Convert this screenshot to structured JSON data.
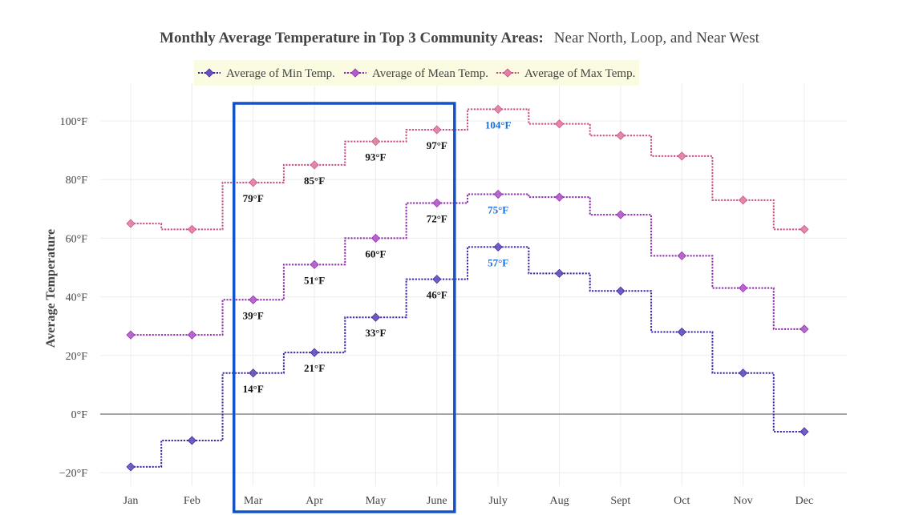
{
  "chart_data": {
    "type": "line",
    "line_shape": "step",
    "title": "Monthly Average Temperature in Top 3 Community Areas:",
    "subtitle": "Near North, Loop, and Near West",
    "xlabel": "",
    "ylabel": "Average Temperature",
    "categories": [
      "Jan",
      "Feb",
      "Mar",
      "Apr",
      "May",
      "June",
      "July",
      "Aug",
      "Sept",
      "Oct",
      "Nov",
      "Dec"
    ],
    "ylim": [
      -25,
      110
    ],
    "yticks": [
      -20,
      0,
      20,
      40,
      60,
      80,
      100
    ],
    "ytick_labels": [
      "−20°F",
      "0°F",
      "20°F",
      "40°F",
      "60°F",
      "80°F",
      "100°F"
    ],
    "grid": true,
    "legend_position": "top-left",
    "legend_background": "#fbfbe1",
    "series": [
      {
        "name": "Average of Min Temp.",
        "color": "#3d2aa6",
        "marker_color": "#6a4fbe",
        "values": [
          -18,
          -9,
          14,
          21,
          33,
          46,
          57,
          48,
          42,
          28,
          14,
          -6
        ],
        "labels": [
          null,
          null,
          "14°F",
          "21°F",
          "33°F",
          "46°F",
          "57°F",
          null,
          null,
          null,
          null,
          null
        ]
      },
      {
        "name": "Average of Mean Temp.",
        "color": "#8e2fae",
        "marker_color": "#b45cc9",
        "values": [
          27,
          27,
          39,
          51,
          60,
          72,
          75,
          74,
          68,
          54,
          43,
          29
        ],
        "labels": [
          null,
          null,
          "39°F",
          "51°F",
          "60°F",
          "72°F",
          "75°F",
          null,
          null,
          null,
          null,
          null
        ]
      },
      {
        "name": "Average of Max Temp.",
        "color": "#c94f86",
        "marker_color": "#e081a4",
        "values": [
          65,
          63,
          79,
          85,
          93,
          97,
          104,
          99,
          95,
          88,
          73,
          63
        ],
        "labels": [
          null,
          null,
          "79°F",
          "85°F",
          "93°F",
          "97°F",
          "104°F",
          null,
          null,
          null,
          null,
          null
        ]
      }
    ],
    "highlight": {
      "from_category": "Mar",
      "to_category": "June",
      "color": "#1452c8"
    },
    "label_colors": {
      "default": "#111111",
      "peak": "#1a6fd6"
    },
    "peak_category": "July"
  }
}
